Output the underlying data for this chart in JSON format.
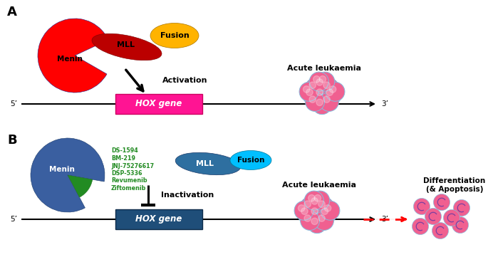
{
  "panel_a_label": "A",
  "panel_b_label": "B",
  "menin_color_a": "#FF0000",
  "menin_color_b": "#3A5FA0",
  "mll_color_a": "#BB0000",
  "mll_color_b": "#2E6FA0",
  "fusion_color_a": "#FFB300",
  "fusion_color_b": "#00BFFF",
  "hox_color_a": "#FF1493",
  "hox_color_b": "#1F4E79",
  "green_wedge_color": "#228B22",
  "activation_text": "Activation",
  "inactivation_text": "Inactivation",
  "hox_text": "HOX gene",
  "acute_leukaemia_text": "Acute leukaemia",
  "differentiation_text": "Differentiation\n(& Apoptosis)",
  "five_prime": "5’",
  "three_prime": "3’",
  "menin_text": "Menin",
  "mll_text": "MLL",
  "fusion_text": "Fusion",
  "drug_labels": [
    "DS-1594",
    "BM-219",
    "JNJ-75276617",
    "DSP-5336",
    "Revumenib",
    "Ziftomenib"
  ],
  "drug_color": "#228B22",
  "cell_pink": "#F06090",
  "cell_outline": "#88BBDD",
  "bg": "#FFFFFF"
}
